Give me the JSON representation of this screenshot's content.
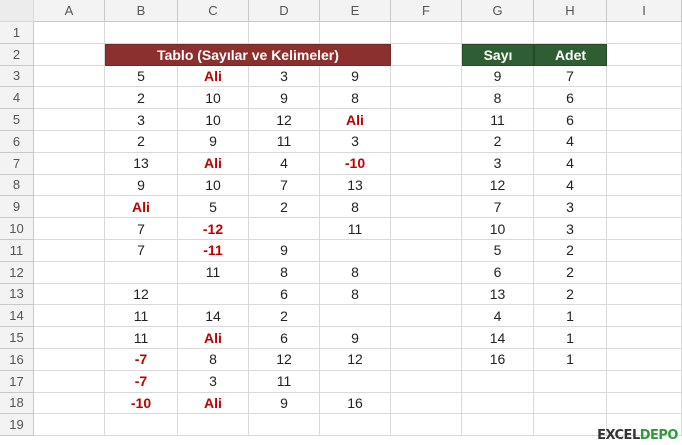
{
  "columns": [
    "",
    "A",
    "B",
    "C",
    "D",
    "E",
    "F",
    "G",
    "H",
    "I"
  ],
  "rows": [
    "1",
    "2",
    "3",
    "4",
    "5",
    "6",
    "7",
    "8",
    "9",
    "10",
    "11",
    "12",
    "13",
    "14",
    "15",
    "16",
    "17",
    "18",
    "19"
  ],
  "table_title": "Tablo (Sayılar ve Kelimeler)",
  "table": [
    [
      "5",
      "Ali",
      "3",
      "9"
    ],
    [
      "2",
      "10",
      "9",
      "8"
    ],
    [
      "3",
      "10",
      "12",
      "Ali"
    ],
    [
      "2",
      "9",
      "11",
      "3"
    ],
    [
      "13",
      "Ali",
      "4",
      "-10"
    ],
    [
      "9",
      "10",
      "7",
      "13"
    ],
    [
      "Ali",
      "5",
      "2",
      "8"
    ],
    [
      "7",
      "-12",
      "",
      "11"
    ],
    [
      "7",
      "-11",
      "9",
      ""
    ],
    [
      "",
      "11",
      "8",
      "8"
    ],
    [
      "12",
      "",
      "6",
      "8"
    ],
    [
      "11",
      "14",
      "2",
      ""
    ],
    [
      "11",
      "Ali",
      "6",
      "9"
    ],
    [
      "-7",
      "8",
      "12",
      "12"
    ],
    [
      "-7",
      "3",
      "11",
      ""
    ],
    [
      "-10",
      "Ali",
      "9",
      "16"
    ]
  ],
  "freq_headers": [
    "Sayı",
    "Adet"
  ],
  "freq": [
    [
      "9",
      "7"
    ],
    [
      "8",
      "6"
    ],
    [
      "11",
      "6"
    ],
    [
      "2",
      "4"
    ],
    [
      "3",
      "4"
    ],
    [
      "12",
      "4"
    ],
    [
      "7",
      "3"
    ],
    [
      "10",
      "3"
    ],
    [
      "5",
      "2"
    ],
    [
      "6",
      "2"
    ],
    [
      "13",
      "2"
    ],
    [
      "4",
      "1"
    ],
    [
      "14",
      "1"
    ],
    [
      "16",
      "1"
    ]
  ],
  "colors": {
    "title_bg": "#8b2f2f",
    "header_green": "#2e5e31",
    "highlight_text": "#c00000"
  },
  "watermark": {
    "part1": "EXCEL",
    "part2": "DEPO"
  }
}
